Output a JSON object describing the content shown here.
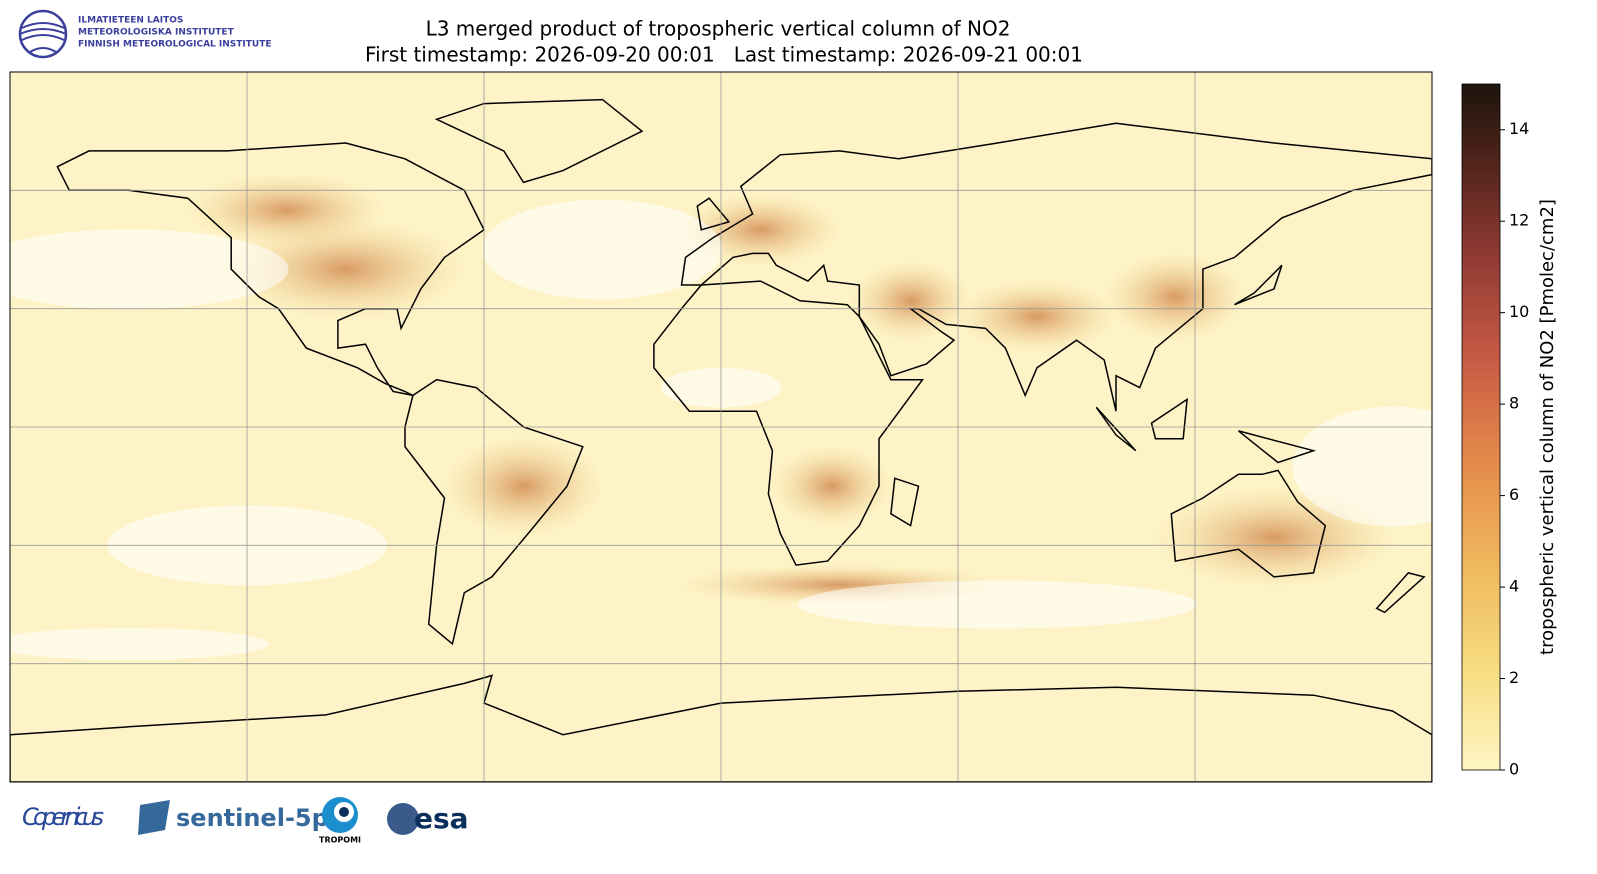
{
  "header": {
    "title": "L3 merged product of tropospheric vertical column of NO2",
    "subtitle": "First timestamp: 2026-09-20 00:01   Last timestamp: 2026-09-21 00:01"
  },
  "institute": [
    "ILMATIETEEN LAITOS",
    "METEOROLOGISKA INSTITUTET",
    "FINNISH METEOROLOGICAL INSTITUTE"
  ],
  "colorbar": {
    "label": "tropospheric vertical column of NO2 [Pmolec/cm2]",
    "lim": [
      0,
      15
    ],
    "ticks": [
      0,
      2,
      4,
      6,
      8,
      10,
      12,
      14
    ]
  },
  "logos": {
    "copernicus": "Copernicus",
    "sentinel": "sentinel-5p",
    "tropomi": "TROPOMI",
    "esa": "esa"
  }
}
